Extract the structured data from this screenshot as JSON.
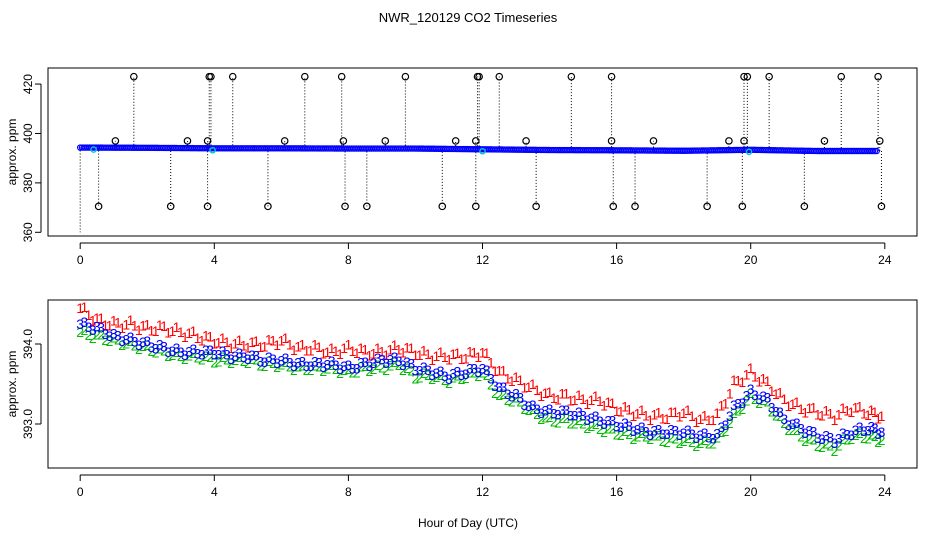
{
  "chart_data": [
    {
      "type": "scatter",
      "title": "NWR_120129  CO2 Timeseries",
      "xlabel": "",
      "ylabel": "approx. ppm",
      "xlim": [
        -0.96,
        24.96
      ],
      "ylim": [
        358.5,
        426.5
      ],
      "x_ticks": [
        0,
        4,
        8,
        12,
        16,
        20,
        24
      ],
      "y_ticks": [
        360,
        380,
        400,
        420
      ],
      "baseline": {
        "color": "#0000ff",
        "accent_color": "#00cccc",
        "x": [
          0,
          2,
          4,
          6,
          8,
          10,
          12,
          14,
          16,
          18,
          20,
          22,
          23.8
        ],
        "y": [
          394.3,
          394.2,
          394.0,
          394.0,
          393.9,
          393.9,
          393.6,
          393.3,
          393.2,
          393.0,
          393.4,
          392.9,
          392.9
        ]
      },
      "outlier_high": {
        "color": "#000000",
        "x": [
          1.6,
          3.85,
          3.9,
          4.55,
          6.7,
          7.8,
          9.7,
          11.85,
          11.9,
          12.5,
          14.65,
          15.85,
          19.8,
          19.9,
          20.55,
          22.7,
          23.8
        ],
        "y": [
          423,
          423,
          423,
          423,
          423,
          423,
          423,
          423,
          423,
          423,
          423,
          423,
          423,
          423,
          423,
          423,
          423
        ]
      },
      "outlier_mid": {
        "color": "#000000",
        "x": [
          1.05,
          3.2,
          3.8,
          6.1,
          7.85,
          9.1,
          11.2,
          11.8,
          13.3,
          15.85,
          17.1,
          19.35,
          19.8,
          22.2,
          23.85
        ],
        "y": [
          397,
          397,
          397,
          397,
          397,
          397,
          397,
          397,
          397,
          397,
          397,
          397,
          397,
          397,
          397
        ]
      },
      "outlier_low": {
        "color": "#000000",
        "x": [
          0.55,
          2.7,
          3.8,
          5.6,
          7.9,
          8.55,
          10.8,
          11.8,
          13.6,
          15.9,
          16.55,
          18.7,
          19.75,
          21.6,
          23.9
        ],
        "y": [
          370.5,
          370.5,
          370.5,
          370.5,
          370.5,
          370.5,
          370.5,
          370.5,
          370.5,
          370.5,
          370.5,
          370.5,
          370.5,
          370.5,
          370.5
        ]
      }
    },
    {
      "type": "scatter",
      "title": "",
      "xlabel": "Hour of Day (UTC)",
      "ylabel": "approx. ppm",
      "xlim": [
        -0.96,
        24.96
      ],
      "ylim": [
        392.45,
        394.55
      ],
      "x_ticks": [
        0,
        4,
        8,
        12,
        16,
        20,
        24
      ],
      "y_ticks": [
        393.0,
        394.0
      ],
      "y_tick_labels": [
        "393.0",
        "394.0"
      ],
      "series": [
        {
          "name": "1",
          "marker": "1",
          "color": "#ff0000",
          "x": [
            0,
            0.5,
            1,
            1.5,
            2,
            2.5,
            3,
            3.5,
            4,
            4.5,
            5,
            5.5,
            6,
            6.5,
            7,
            7.5,
            8,
            8.5,
            9,
            9.5,
            10,
            10.5,
            11,
            11.5,
            12,
            12.5,
            13,
            13.5,
            14,
            14.5,
            15,
            15.5,
            16,
            16.5,
            17,
            17.5,
            18,
            18.5,
            19,
            19.5,
            20,
            20.5,
            21,
            21.5,
            22,
            22.5,
            23,
            23.5,
            23.9
          ],
          "y": [
            394.45,
            394.3,
            394.25,
            394.25,
            394.2,
            394.2,
            394.15,
            394.1,
            394.05,
            394.0,
            394.0,
            394.0,
            394.05,
            393.95,
            393.95,
            393.9,
            393.95,
            393.9,
            393.9,
            393.95,
            393.9,
            393.85,
            393.85,
            393.85,
            393.9,
            393.65,
            393.55,
            393.45,
            393.35,
            393.35,
            393.3,
            393.3,
            393.2,
            393.15,
            393.1,
            393.1,
            393.15,
            393.05,
            393.1,
            393.5,
            393.65,
            393.5,
            393.3,
            393.2,
            393.15,
            393.1,
            393.2,
            393.15,
            393.1
          ]
        },
        {
          "name": "2",
          "marker": "2",
          "color": "#00bb00",
          "x": [
            0,
            0.5,
            1,
            1.5,
            2,
            2.5,
            3,
            3.5,
            4,
            4.5,
            5,
            5.5,
            6,
            6.5,
            7,
            7.5,
            8,
            8.5,
            9,
            9.5,
            10,
            10.5,
            11,
            11.5,
            12,
            12.5,
            13,
            13.5,
            14,
            14.5,
            15,
            15.5,
            16,
            16.5,
            17,
            17.5,
            18,
            18.5,
            19,
            19.5,
            20,
            20.5,
            21,
            21.5,
            22,
            22.5,
            23,
            23.5,
            23.9
          ],
          "y": [
            394.15,
            394.1,
            394.05,
            394.0,
            393.95,
            393.9,
            393.85,
            393.85,
            393.8,
            393.8,
            393.8,
            393.75,
            393.75,
            393.7,
            393.7,
            393.7,
            393.65,
            393.7,
            393.7,
            393.75,
            393.6,
            393.6,
            393.55,
            393.6,
            393.65,
            393.35,
            393.3,
            393.15,
            393.05,
            393.05,
            393.0,
            392.95,
            392.9,
            392.85,
            392.85,
            392.8,
            392.8,
            392.75,
            392.8,
            393.1,
            393.35,
            393.25,
            393.0,
            392.85,
            392.75,
            392.7,
            392.85,
            392.85,
            392.8
          ]
        },
        {
          "name": "3",
          "marker": "3",
          "color": "#0000ff",
          "x": [
            0,
            0.5,
            1,
            1.5,
            2,
            2.5,
            3,
            3.5,
            4,
            4.5,
            5,
            5.5,
            6,
            6.5,
            7,
            7.5,
            8,
            8.5,
            9,
            9.5,
            10,
            10.5,
            11,
            11.5,
            12,
            12.5,
            13,
            13.5,
            14,
            14.5,
            15,
            15.5,
            16,
            16.5,
            17,
            17.5,
            18,
            18.5,
            19,
            19.5,
            20,
            20.5,
            21,
            21.5,
            22,
            22.5,
            23,
            23.5,
            23.9
          ],
          "y": [
            394.25,
            394.2,
            394.1,
            394.05,
            394.0,
            393.95,
            393.9,
            393.9,
            393.9,
            393.85,
            393.85,
            393.8,
            393.8,
            393.75,
            393.75,
            393.75,
            393.7,
            393.75,
            393.8,
            393.8,
            393.7,
            393.65,
            393.6,
            393.65,
            393.7,
            393.45,
            393.35,
            393.2,
            393.15,
            393.15,
            393.1,
            393.05,
            393.0,
            392.95,
            392.9,
            392.9,
            392.9,
            392.85,
            392.85,
            393.2,
            393.4,
            393.3,
            393.05,
            392.95,
            392.85,
            392.8,
            392.9,
            392.95,
            392.9
          ]
        }
      ]
    }
  ]
}
